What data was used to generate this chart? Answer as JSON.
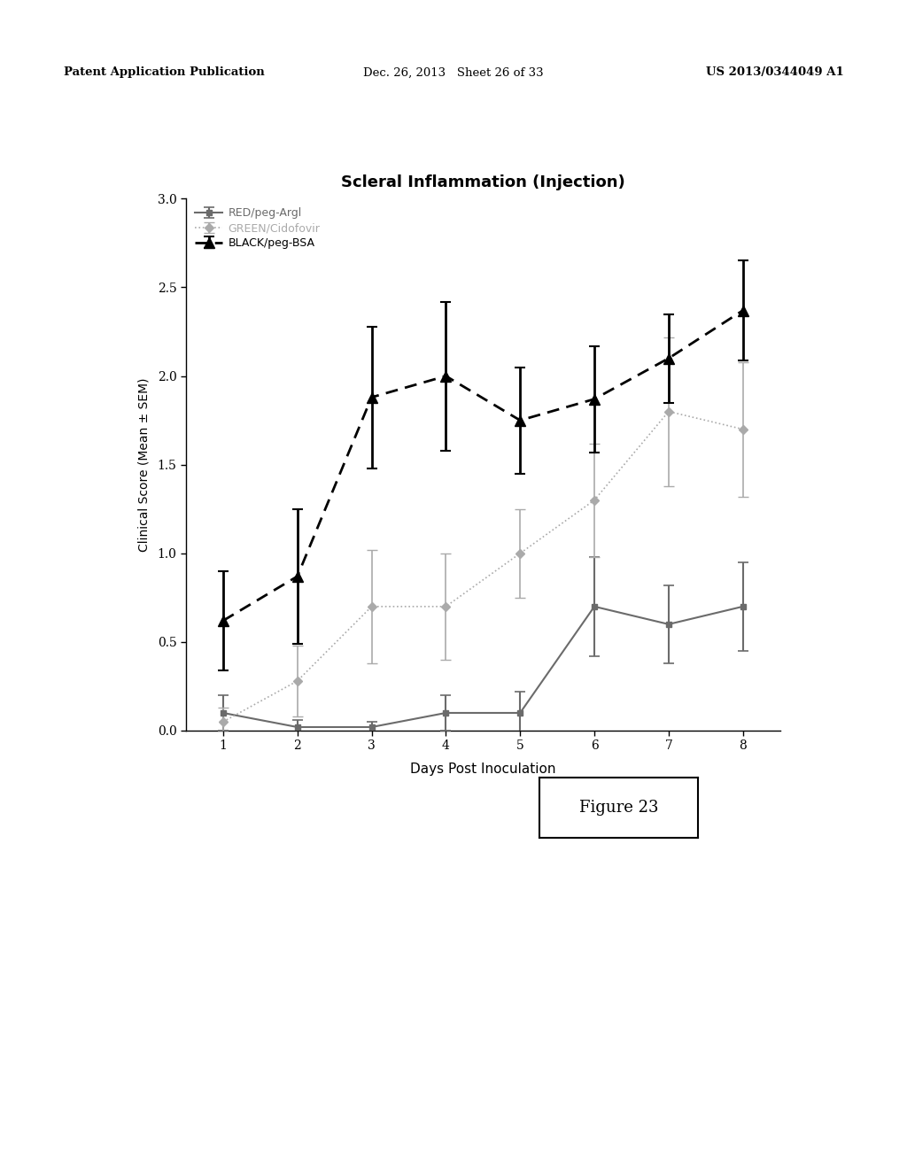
{
  "title": "Scleral Inflammation (Injection)",
  "xlabel": "Days Post Inoculation",
  "ylabel": "Clinical Score (Mean ± SEM)",
  "x": [
    1,
    2,
    3,
    4,
    5,
    6,
    7,
    8
  ],
  "red_y": [
    0.1,
    0.02,
    0.02,
    0.1,
    0.1,
    0.7,
    0.6,
    0.7
  ],
  "red_yerr": [
    0.1,
    0.04,
    0.03,
    0.1,
    0.12,
    0.28,
    0.22,
    0.25
  ],
  "green_y": [
    0.05,
    0.28,
    0.7,
    0.7,
    1.0,
    1.3,
    1.8,
    1.7
  ],
  "green_yerr": [
    0.08,
    0.2,
    0.32,
    0.3,
    0.25,
    0.32,
    0.42,
    0.38
  ],
  "black_y": [
    0.62,
    0.87,
    1.88,
    2.0,
    1.75,
    1.87,
    2.1,
    2.37
  ],
  "black_yerr": [
    0.28,
    0.38,
    0.4,
    0.42,
    0.3,
    0.3,
    0.25,
    0.28
  ],
  "red_color": "#6b6b6b",
  "green_color": "#aaaaaa",
  "black_color": "#000000",
  "red_label": "RED/peg-Argl",
  "green_label": "GREEN/Cidofovir",
  "black_label": "BLACK/peg-BSA",
  "ylim": [
    0.0,
    3.0
  ],
  "yticks": [
    0.0,
    0.5,
    1.0,
    1.5,
    2.0,
    2.5,
    3.0
  ],
  "figure_label": "Figure 23",
  "header_left": "Patent Application Publication",
  "header_mid": "Dec. 26, 2013   Sheet 26 of 33",
  "header_right": "US 2013/0344049 A1"
}
